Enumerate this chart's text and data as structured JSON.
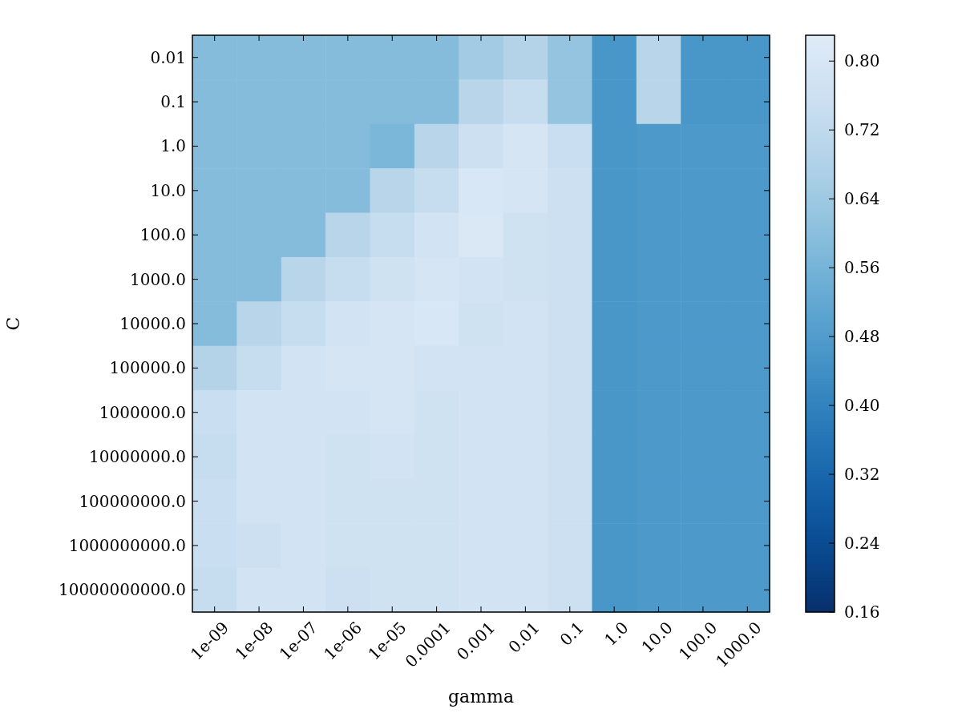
{
  "chart_data": {
    "type": "heatmap",
    "xlabel": "gamma",
    "ylabel": "C",
    "categories": [
      "1e-09",
      "1e-08",
      "1e-07",
      "1e-06",
      "1e-05",
      "0.0001",
      "0.001",
      "0.01",
      "0.1",
      "1.0",
      "10.0",
      "100.0",
      "1000.0"
    ],
    "y_categories": [
      "0.01",
      "0.1",
      "1.0",
      "10.0",
      "100.0",
      "1000.0",
      "10000.0",
      "100000.0",
      "1000000.0",
      "10000000.0",
      "100000000.0",
      "1000000000.0",
      "10000000000.0"
    ],
    "cells": [
      [
        0.59,
        0.59,
        0.59,
        0.59,
        0.59,
        0.59,
        0.65,
        0.69,
        0.62,
        0.46,
        0.7,
        0.46,
        0.46
      ],
      [
        0.59,
        0.59,
        0.59,
        0.59,
        0.59,
        0.59,
        0.7,
        0.74,
        0.62,
        0.46,
        0.7,
        0.46,
        0.46
      ],
      [
        0.59,
        0.59,
        0.59,
        0.59,
        0.57,
        0.7,
        0.76,
        0.79,
        0.75,
        0.46,
        0.47,
        0.47,
        0.47
      ],
      [
        0.59,
        0.59,
        0.59,
        0.59,
        0.7,
        0.74,
        0.8,
        0.79,
        0.76,
        0.46,
        0.47,
        0.47,
        0.47
      ],
      [
        0.59,
        0.59,
        0.59,
        0.7,
        0.74,
        0.78,
        0.81,
        0.77,
        0.76,
        0.46,
        0.47,
        0.47,
        0.47
      ],
      [
        0.59,
        0.59,
        0.7,
        0.74,
        0.77,
        0.79,
        0.78,
        0.77,
        0.76,
        0.46,
        0.47,
        0.47,
        0.47
      ],
      [
        0.59,
        0.7,
        0.74,
        0.78,
        0.79,
        0.8,
        0.77,
        0.78,
        0.76,
        0.46,
        0.47,
        0.47,
        0.47
      ],
      [
        0.69,
        0.74,
        0.78,
        0.79,
        0.79,
        0.78,
        0.78,
        0.78,
        0.76,
        0.46,
        0.47,
        0.47,
        0.47
      ],
      [
        0.75,
        0.78,
        0.78,
        0.78,
        0.79,
        0.77,
        0.78,
        0.78,
        0.76,
        0.46,
        0.47,
        0.47,
        0.47
      ],
      [
        0.74,
        0.78,
        0.78,
        0.77,
        0.78,
        0.77,
        0.78,
        0.78,
        0.76,
        0.46,
        0.47,
        0.47,
        0.47
      ],
      [
        0.75,
        0.78,
        0.78,
        0.77,
        0.77,
        0.77,
        0.78,
        0.78,
        0.76,
        0.46,
        0.47,
        0.47,
        0.47
      ],
      [
        0.75,
        0.76,
        0.78,
        0.77,
        0.77,
        0.77,
        0.78,
        0.78,
        0.76,
        0.46,
        0.47,
        0.47,
        0.47
      ],
      [
        0.74,
        0.78,
        0.78,
        0.76,
        0.77,
        0.77,
        0.78,
        0.78,
        0.76,
        0.46,
        0.47,
        0.47,
        0.47
      ]
    ],
    "clim": [
      0.16,
      0.83
    ],
    "cticks": [
      0.16,
      0.24,
      0.32,
      {
        "value": 0.4,
        "label": "0.40"
      },
      0.48,
      0.56,
      0.64,
      0.72,
      {
        "value": 0.8,
        "label": "0.80"
      }
    ]
  }
}
